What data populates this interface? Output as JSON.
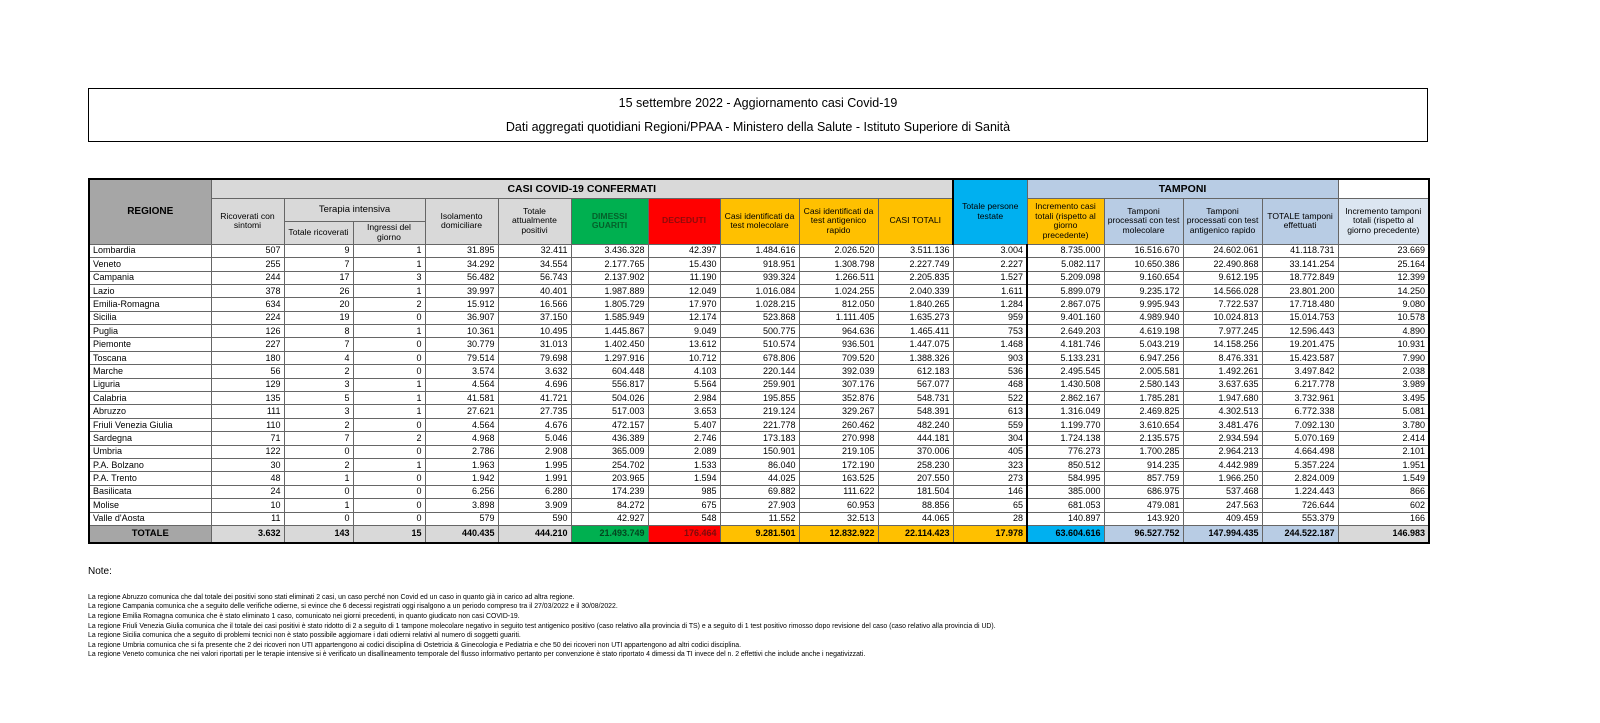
{
  "title": {
    "line1": "15 settembre 2022 - Aggiornamento casi Covid-19",
    "line2": "Dati aggregati quotidiani Regioni/PPAA - Ministero della Salute - Istituto Superiore di Sanità"
  },
  "colors": {
    "green": "#00b050",
    "red": "#ff0000",
    "yellow": "#ffc000",
    "cyan": "#00b0f0",
    "light_blue": "#b8cce4",
    "header_gray": "#d9d9d9",
    "region_gray": "#a6a6a6"
  },
  "table": {
    "headers": {
      "regione": "REGIONE",
      "casi_group": "CASI COVID-19 CONFERMATI",
      "terapia": "Terapia intensiva",
      "persone": "Totale persone testate",
      "tamponi_group": "TAMPONI",
      "ricoverati": "Ricoverati con sintomi",
      "ti_totale": "Totale ricoverati",
      "ti_ingressi": "Ingressi del giorno",
      "isolamento": "Isolamento domiciliare",
      "attualmente": "Totale attualmente positivi",
      "dimessi": "DIMESSI GUARITI",
      "deceduti": "DECEDUTI",
      "casi_mol": "Casi identificati da test molecolare",
      "casi_ant": "Casi identificati da test antigenico rapido",
      "casi_tot": "CASI TOTALI",
      "incr_casi": "Incremento casi totali (rispetto al giorno precedente)",
      "tamponi_mol": "Tamponi processati con test molecolare",
      "tamponi_ant": "Tamponi processati con test antigenico rapido",
      "tot_tamponi": "TOTALE tamponi effettuati",
      "incr_tamponi": "Incremento tamponi totali (rispetto al giorno precedente)"
    },
    "rows": [
      {
        "regione": "Lombardia",
        "values": [
          "507",
          "9",
          "1",
          "31.895",
          "32.411",
          "3.436.328",
          "42.397",
          "1.484.616",
          "2.026.520",
          "3.511.136",
          "3.004",
          "8.735.000",
          "16.516.670",
          "24.602.061",
          "41.118.731",
          "23.669"
        ]
      },
      {
        "regione": "Veneto",
        "values": [
          "255",
          "7",
          "1",
          "34.292",
          "34.554",
          "2.177.765",
          "15.430",
          "918.951",
          "1.308.798",
          "2.227.749",
          "2.227",
          "5.082.117",
          "10.650.386",
          "22.490.868",
          "33.141.254",
          "25.164"
        ]
      },
      {
        "regione": "Campania",
        "values": [
          "244",
          "17",
          "3",
          "56.482",
          "56.743",
          "2.137.902",
          "11.190",
          "939.324",
          "1.266.511",
          "2.205.835",
          "1.527",
          "5.209.098",
          "9.160.654",
          "9.612.195",
          "18.772.849",
          "12.399"
        ]
      },
      {
        "regione": "Lazio",
        "values": [
          "378",
          "26",
          "1",
          "39.997",
          "40.401",
          "1.987.889",
          "12.049",
          "1.016.084",
          "1.024.255",
          "2.040.339",
          "1.611",
          "5.899.079",
          "9.235.172",
          "14.566.028",
          "23.801.200",
          "14.250"
        ]
      },
      {
        "regione": "Emilia-Romagna",
        "values": [
          "634",
          "20",
          "2",
          "15.912",
          "16.566",
          "1.805.729",
          "17.970",
          "1.028.215",
          "812.050",
          "1.840.265",
          "1.284",
          "2.867.075",
          "9.995.943",
          "7.722.537",
          "17.718.480",
          "9.080"
        ]
      },
      {
        "regione": "Sicilia",
        "values": [
          "224",
          "19",
          "0",
          "36.907",
          "37.150",
          "1.585.949",
          "12.174",
          "523.868",
          "1.111.405",
          "1.635.273",
          "959",
          "9.401.160",
          "4.989.940",
          "10.024.813",
          "15.014.753",
          "10.578"
        ]
      },
      {
        "regione": "Puglia",
        "values": [
          "126",
          "8",
          "1",
          "10.361",
          "10.495",
          "1.445.867",
          "9.049",
          "500.775",
          "964.636",
          "1.465.411",
          "753",
          "2.649.203",
          "4.619.198",
          "7.977.245",
          "12.596.443",
          "4.890"
        ]
      },
      {
        "regione": "Piemonte",
        "values": [
          "227",
          "7",
          "0",
          "30.779",
          "31.013",
          "1.402.450",
          "13.612",
          "510.574",
          "936.501",
          "1.447.075",
          "1.468",
          "4.181.746",
          "5.043.219",
          "14.158.256",
          "19.201.475",
          "10.931"
        ]
      },
      {
        "regione": "Toscana",
        "values": [
          "180",
          "4",
          "0",
          "79.514",
          "79.698",
          "1.297.916",
          "10.712",
          "678.806",
          "709.520",
          "1.388.326",
          "903",
          "5.133.231",
          "6.947.256",
          "8.476.331",
          "15.423.587",
          "7.990"
        ]
      },
      {
        "regione": "Marche",
        "values": [
          "56",
          "2",
          "0",
          "3.574",
          "3.632",
          "604.448",
          "4.103",
          "220.144",
          "392.039",
          "612.183",
          "536",
          "2.495.545",
          "2.005.581",
          "1.492.261",
          "3.497.842",
          "2.038"
        ]
      },
      {
        "regione": "Liguria",
        "values": [
          "129",
          "3",
          "1",
          "4.564",
          "4.696",
          "556.817",
          "5.564",
          "259.901",
          "307.176",
          "567.077",
          "468",
          "1.430.508",
          "2.580.143",
          "3.637.635",
          "6.217.778",
          "3.989"
        ]
      },
      {
        "regione": "Calabria",
        "values": [
          "135",
          "5",
          "1",
          "41.581",
          "41.721",
          "504.026",
          "2.984",
          "195.855",
          "352.876",
          "548.731",
          "522",
          "2.862.167",
          "1.785.281",
          "1.947.680",
          "3.732.961",
          "3.495"
        ]
      },
      {
        "regione": "Abruzzo",
        "values": [
          "111",
          "3",
          "1",
          "27.621",
          "27.735",
          "517.003",
          "3.653",
          "219.124",
          "329.267",
          "548.391",
          "613",
          "1.316.049",
          "2.469.825",
          "4.302.513",
          "6.772.338",
          "5.081"
        ]
      },
      {
        "regione": "Friuli Venezia Giulia",
        "values": [
          "110",
          "2",
          "0",
          "4.564",
          "4.676",
          "472.157",
          "5.407",
          "221.778",
          "260.462",
          "482.240",
          "559",
          "1.199.770",
          "3.610.654",
          "3.481.476",
          "7.092.130",
          "3.780"
        ]
      },
      {
        "regione": "Sardegna",
        "values": [
          "71",
          "7",
          "2",
          "4.968",
          "5.046",
          "436.389",
          "2.746",
          "173.183",
          "270.998",
          "444.181",
          "304",
          "1.724.138",
          "2.135.575",
          "2.934.594",
          "5.070.169",
          "2.414"
        ]
      },
      {
        "regione": "Umbria",
        "values": [
          "122",
          "0",
          "0",
          "2.786",
          "2.908",
          "365.009",
          "2.089",
          "150.901",
          "219.105",
          "370.006",
          "405",
          "776.273",
          "1.700.285",
          "2.964.213",
          "4.664.498",
          "2.101"
        ]
      },
      {
        "regione": "P.A. Bolzano",
        "values": [
          "30",
          "2",
          "1",
          "1.963",
          "1.995",
          "254.702",
          "1.533",
          "86.040",
          "172.190",
          "258.230",
          "323",
          "850.512",
          "914.235",
          "4.442.989",
          "5.357.224",
          "1.951"
        ]
      },
      {
        "regione": "P.A. Trento",
        "values": [
          "48",
          "1",
          "0",
          "1.942",
          "1.991",
          "203.965",
          "1.594",
          "44.025",
          "163.525",
          "207.550",
          "273",
          "584.995",
          "857.759",
          "1.966.250",
          "2.824.009",
          "1.549"
        ]
      },
      {
        "regione": "Basilicata",
        "values": [
          "24",
          "0",
          "0",
          "6.256",
          "6.280",
          "174.239",
          "985",
          "69.882",
          "111.622",
          "181.504",
          "146",
          "385.000",
          "686.975",
          "537.468",
          "1.224.443",
          "866"
        ]
      },
      {
        "regione": "Molise",
        "values": [
          "10",
          "1",
          "0",
          "3.898",
          "3.909",
          "84.272",
          "675",
          "27.903",
          "60.953",
          "88.856",
          "65",
          "681.053",
          "479.081",
          "247.563",
          "726.644",
          "602"
        ]
      },
      {
        "regione": "Valle d'Aosta",
        "values": [
          "11",
          "0",
          "0",
          "579",
          "590",
          "42.927",
          "548",
          "11.552",
          "32.513",
          "44.065",
          "28",
          "140.897",
          "143.920",
          "409.459",
          "553.379",
          "166"
        ]
      }
    ],
    "total": {
      "label": "TOTALE",
      "values": [
        "3.632",
        "143",
        "15",
        "440.435",
        "444.210",
        "21.493.749",
        "176.464",
        "9.281.501",
        "12.832.922",
        "22.114.423",
        "17.978",
        "63.604.616",
        "96.527.752",
        "147.994.435",
        "244.522.187",
        "146.983"
      ]
    }
  },
  "notes": {
    "heading": "Note:",
    "items": [
      "La regione Abruzzo comunica che dal totale dei positivi sono stati eliminati 2 casi, un caso perché non Covid ed un caso in quanto già in carico ad altra regione.",
      "La regione Campania comunica che a seguito delle verifiche odierne, si evince che 6 decessi registrati oggi risalgono a un periodo compreso tra il 27/03/2022 e il 30/08/2022.",
      "La regione Emilia Romagna comunica che è stato eliminato 1 caso, comunicato nei giorni precedenti, in quanto giudicato non casi COVID-19.",
      "La regione Friuli Venezia Giulia comunica che il totale dei casi positivi è stato ridotto di 2 a seguito di 1 tampone molecolare negativo in seguito test antigenico positivo (caso relativo alla provincia di TS) e a seguito di 1 test positivo rimosso dopo revisione del caso (caso relativo alla provincia di UD).",
      "La regione Sicilia comunica che a seguito di problemi tecnici non è stato possibile aggiornare i dati odierni relativi al numero di soggetti guariti.",
      "La regione Umbria comunica che si fa presente che 2 dei ricoveri non UTI appartengono ai codici disciplina di Ostetricia & Ginecologia e Pediatria e che 50 dei ricoveri non UTI appartengono ad altri codici disciplina.",
      "La regione Veneto comunica che nei valori riportati per le terapie intensive si è verificato un disallineamento temporale del flusso informativo pertanto per convenzione è stato riportato 4 dimessi da TI  invece del n. 2 effettivi che include anche i negativizzati."
    ]
  }
}
